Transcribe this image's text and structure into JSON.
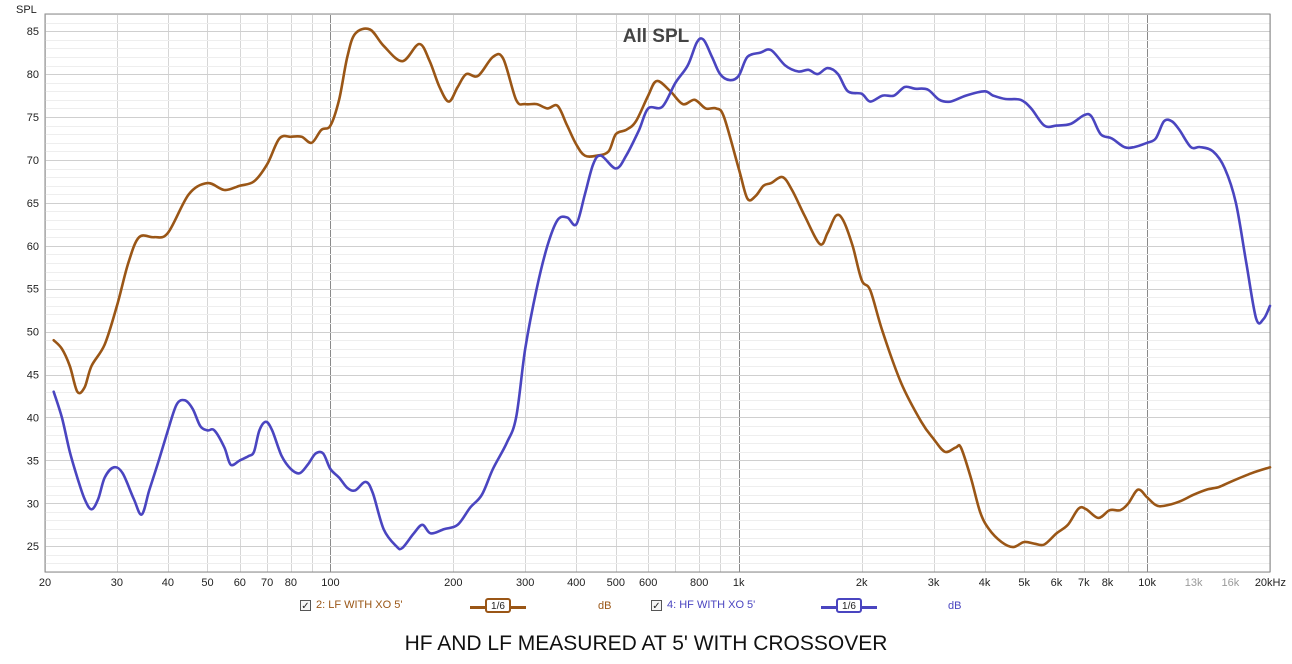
{
  "chart_data": {
    "type": "line",
    "title": "All SPL",
    "ylabel": "SPL",
    "xlabel": "",
    "x_scale": "log",
    "xlim": [
      20,
      20000
    ],
    "ylim": [
      22,
      87
    ],
    "grid": true,
    "y_ticks": [
      "25",
      "30",
      "35",
      "40",
      "45",
      "50",
      "55",
      "60",
      "65",
      "70",
      "75",
      "80",
      "85"
    ],
    "x_ticks": [
      {
        "value": 20,
        "label": "20",
        "dim": false
      },
      {
        "value": 30,
        "label": "30",
        "dim": false
      },
      {
        "value": 40,
        "label": "40",
        "dim": false
      },
      {
        "value": 50,
        "label": "50",
        "dim": false
      },
      {
        "value": 60,
        "label": "60",
        "dim": false
      },
      {
        "value": 70,
        "label": "70",
        "dim": false
      },
      {
        "value": 80,
        "label": "80",
        "dim": false
      },
      {
        "value": 100,
        "label": "100",
        "dim": false
      },
      {
        "value": 200,
        "label": "200",
        "dim": false
      },
      {
        "value": 300,
        "label": "300",
        "dim": false
      },
      {
        "value": 400,
        "label": "400",
        "dim": false
      },
      {
        "value": 500,
        "label": "500",
        "dim": false
      },
      {
        "value": 600,
        "label": "600",
        "dim": false
      },
      {
        "value": 800,
        "label": "800",
        "dim": false
      },
      {
        "value": 1000,
        "label": "1k",
        "dim": false
      },
      {
        "value": 2000,
        "label": "2k",
        "dim": false
      },
      {
        "value": 3000,
        "label": "3k",
        "dim": false
      },
      {
        "value": 4000,
        "label": "4k",
        "dim": false
      },
      {
        "value": 5000,
        "label": "5k",
        "dim": false
      },
      {
        "value": 6000,
        "label": "6k",
        "dim": false
      },
      {
        "value": 7000,
        "label": "7k",
        "dim": false
      },
      {
        "value": 8000,
        "label": "8k",
        "dim": false
      },
      {
        "value": 10000,
        "label": "10k",
        "dim": false
      },
      {
        "value": 13000,
        "label": "13k",
        "dim": true
      },
      {
        "value": 16000,
        "label": "16k",
        "dim": true
      },
      {
        "value": 20000,
        "label": "20kHz",
        "dim": false
      }
    ],
    "series": [
      {
        "name": "2: LF WITH XO 5'",
        "color": "#9a5616",
        "smoothing": "1/6",
        "unit": "dB",
        "points": [
          [
            21,
            49
          ],
          [
            22,
            48
          ],
          [
            23,
            46
          ],
          [
            24,
            43
          ],
          [
            25,
            43.5
          ],
          [
            26,
            46
          ],
          [
            28,
            48.5
          ],
          [
            30,
            53
          ],
          [
            32,
            58
          ],
          [
            34,
            61
          ],
          [
            37,
            61
          ],
          [
            40,
            61.5
          ],
          [
            45,
            66
          ],
          [
            50,
            67.3
          ],
          [
            55,
            66.5
          ],
          [
            60,
            67
          ],
          [
            65,
            67.5
          ],
          [
            70,
            69.5
          ],
          [
            75,
            72.5
          ],
          [
            80,
            72.7
          ],
          [
            85,
            72.7
          ],
          [
            90,
            72
          ],
          [
            95,
            73.5
          ],
          [
            100,
            74
          ],
          [
            105,
            77
          ],
          [
            110,
            82
          ],
          [
            115,
            84.7
          ],
          [
            125,
            85.2
          ],
          [
            135,
            83.3
          ],
          [
            150,
            81.5
          ],
          [
            165,
            83.5
          ],
          [
            175,
            81.5
          ],
          [
            185,
            78.5
          ],
          [
            195,
            76.8
          ],
          [
            205,
            78.5
          ],
          [
            215,
            80
          ],
          [
            230,
            79.8
          ],
          [
            250,
            82
          ],
          [
            265,
            81.8
          ],
          [
            285,
            77
          ],
          [
            300,
            76.5
          ],
          [
            320,
            76.5
          ],
          [
            340,
            76
          ],
          [
            360,
            76.3
          ],
          [
            380,
            74
          ],
          [
            400,
            71.8
          ],
          [
            420,
            70.5
          ],
          [
            450,
            70.5
          ],
          [
            480,
            71
          ],
          [
            500,
            73
          ],
          [
            530,
            73.5
          ],
          [
            560,
            74.5
          ],
          [
            600,
            77.5
          ],
          [
            630,
            79.2
          ],
          [
            680,
            78
          ],
          [
            730,
            76.5
          ],
          [
            780,
            77
          ],
          [
            830,
            76
          ],
          [
            880,
            76
          ],
          [
            920,
            75
          ],
          [
            1000,
            69
          ],
          [
            1050,
            65.5
          ],
          [
            1100,
            65.8
          ],
          [
            1150,
            67
          ],
          [
            1200,
            67.3
          ],
          [
            1280,
            68
          ],
          [
            1350,
            66.5
          ],
          [
            1450,
            63.5
          ],
          [
            1580,
            60.2
          ],
          [
            1650,
            61.5
          ],
          [
            1730,
            63.5
          ],
          [
            1800,
            63
          ],
          [
            1900,
            60
          ],
          [
            2000,
            56
          ],
          [
            2100,
            54.8
          ],
          [
            2250,
            50
          ],
          [
            2500,
            44
          ],
          [
            2800,
            39.5
          ],
          [
            3000,
            37.5
          ],
          [
            3200,
            36
          ],
          [
            3400,
            36.5
          ],
          [
            3500,
            36.5
          ],
          [
            3700,
            33
          ],
          [
            3900,
            29
          ],
          [
            4100,
            27
          ],
          [
            4400,
            25.5
          ],
          [
            4700,
            24.9
          ],
          [
            5000,
            25.5
          ],
          [
            5300,
            25.3
          ],
          [
            5600,
            25.2
          ],
          [
            6000,
            26.5
          ],
          [
            6400,
            27.5
          ],
          [
            6800,
            29.4
          ],
          [
            7100,
            29.3
          ],
          [
            7600,
            28.3
          ],
          [
            8100,
            29.2
          ],
          [
            8600,
            29.2
          ],
          [
            9000,
            30
          ],
          [
            9500,
            31.6
          ],
          [
            10000,
            30.7
          ],
          [
            10500,
            29.8
          ],
          [
            11000,
            29.7
          ],
          [
            12000,
            30.2
          ],
          [
            13000,
            31
          ],
          [
            14000,
            31.6
          ],
          [
            15000,
            31.9
          ],
          [
            16000,
            32.5
          ],
          [
            18000,
            33.5
          ],
          [
            20000,
            34.2
          ]
        ]
      },
      {
        "name": "4: HF WITH XO 5'",
        "color": "#4a45c0",
        "smoothing": "1/6",
        "unit": "dB",
        "points": [
          [
            21,
            43
          ],
          [
            22,
            40
          ],
          [
            23,
            36
          ],
          [
            24,
            33
          ],
          [
            25,
            30.5
          ],
          [
            26,
            29.3
          ],
          [
            27,
            30.5
          ],
          [
            28,
            33
          ],
          [
            29.5,
            34.2
          ],
          [
            31,
            33.5
          ],
          [
            33,
            30.5
          ],
          [
            34.5,
            28.7
          ],
          [
            36,
            31.5
          ],
          [
            38,
            35
          ],
          [
            40,
            38.5
          ],
          [
            42,
            41.5
          ],
          [
            44,
            42
          ],
          [
            46,
            41
          ],
          [
            48,
            39
          ],
          [
            50,
            38.5
          ],
          [
            52,
            38.5
          ],
          [
            55,
            36.5
          ],
          [
            57,
            34.5
          ],
          [
            60,
            35
          ],
          [
            63,
            35.5
          ],
          [
            65,
            36
          ],
          [
            67,
            38.5
          ],
          [
            69.5,
            39.5
          ],
          [
            72,
            38.5
          ],
          [
            76,
            35.5
          ],
          [
            80,
            34
          ],
          [
            84,
            33.5
          ],
          [
            88,
            34.5
          ],
          [
            92,
            35.8
          ],
          [
            96,
            35.8
          ],
          [
            100,
            34
          ],
          [
            105,
            33
          ],
          [
            110,
            31.8
          ],
          [
            115,
            31.5
          ],
          [
            122,
            32.5
          ],
          [
            127,
            31.2
          ],
          [
            135,
            27
          ],
          [
            145,
            25
          ],
          [
            150,
            24.8
          ],
          [
            160,
            26.5
          ],
          [
            168,
            27.5
          ],
          [
            176,
            26.5
          ],
          [
            190,
            27
          ],
          [
            205,
            27.5
          ],
          [
            220,
            29.5
          ],
          [
            235,
            31
          ],
          [
            250,
            34
          ],
          [
            270,
            37
          ],
          [
            285,
            40
          ],
          [
            300,
            48
          ],
          [
            320,
            55
          ],
          [
            340,
            60
          ],
          [
            360,
            63
          ],
          [
            380,
            63.3
          ],
          [
            400,
            62.5
          ],
          [
            420,
            66
          ],
          [
            440,
            69.5
          ],
          [
            460,
            70.5
          ],
          [
            500,
            69
          ],
          [
            530,
            70.5
          ],
          [
            570,
            73.5
          ],
          [
            600,
            76
          ],
          [
            650,
            76.2
          ],
          [
            700,
            79
          ],
          [
            750,
            81
          ],
          [
            790,
            83.7
          ],
          [
            820,
            84
          ],
          [
            860,
            82
          ],
          [
            900,
            80
          ],
          [
            950,
            79.3
          ],
          [
            1000,
            79.8
          ],
          [
            1050,
            82
          ],
          [
            1130,
            82.5
          ],
          [
            1200,
            82.8
          ],
          [
            1300,
            81
          ],
          [
            1400,
            80.3
          ],
          [
            1480,
            80.5
          ],
          [
            1560,
            80
          ],
          [
            1650,
            80.7
          ],
          [
            1750,
            80
          ],
          [
            1850,
            78
          ],
          [
            2000,
            77.7
          ],
          [
            2100,
            76.8
          ],
          [
            2250,
            77.5
          ],
          [
            2400,
            77.5
          ],
          [
            2550,
            78.5
          ],
          [
            2700,
            78.3
          ],
          [
            2900,
            78.2
          ],
          [
            3100,
            77
          ],
          [
            3300,
            76.8
          ],
          [
            3600,
            77.5
          ],
          [
            4000,
            78
          ],
          [
            4200,
            77.5
          ],
          [
            4500,
            77.1
          ],
          [
            4900,
            77
          ],
          [
            5200,
            76
          ],
          [
            5600,
            74
          ],
          [
            6000,
            74
          ],
          [
            6500,
            74.2
          ],
          [
            7000,
            75.2
          ],
          [
            7300,
            75.1
          ],
          [
            7700,
            73
          ],
          [
            8200,
            72.5
          ],
          [
            8800,
            71.5
          ],
          [
            9300,
            71.5
          ],
          [
            10000,
            72
          ],
          [
            10500,
            72.5
          ],
          [
            11000,
            74.5
          ],
          [
            11500,
            74.5
          ],
          [
            12000,
            73.5
          ],
          [
            12800,
            71.5
          ],
          [
            13500,
            71.5
          ],
          [
            14500,
            71
          ],
          [
            15500,
            69
          ],
          [
            16500,
            65
          ],
          [
            17500,
            58
          ],
          [
            18500,
            51.5
          ],
          [
            19300,
            51.5
          ],
          [
            20000,
            53
          ]
        ]
      }
    ]
  },
  "legend": {
    "items": [
      {
        "checked": "✓",
        "name": "2: LF WITH XO 5'",
        "smoothing": "1/6",
        "unit": "dB",
        "color": "#9a5616"
      },
      {
        "checked": "✓",
        "name": "4: HF WITH XO 5'",
        "smoothing": "1/6",
        "unit": "dB",
        "color": "#4a45c0"
      }
    ]
  },
  "caption": "HF AND LF MEASURED AT 5' WITH CROSSOVER"
}
